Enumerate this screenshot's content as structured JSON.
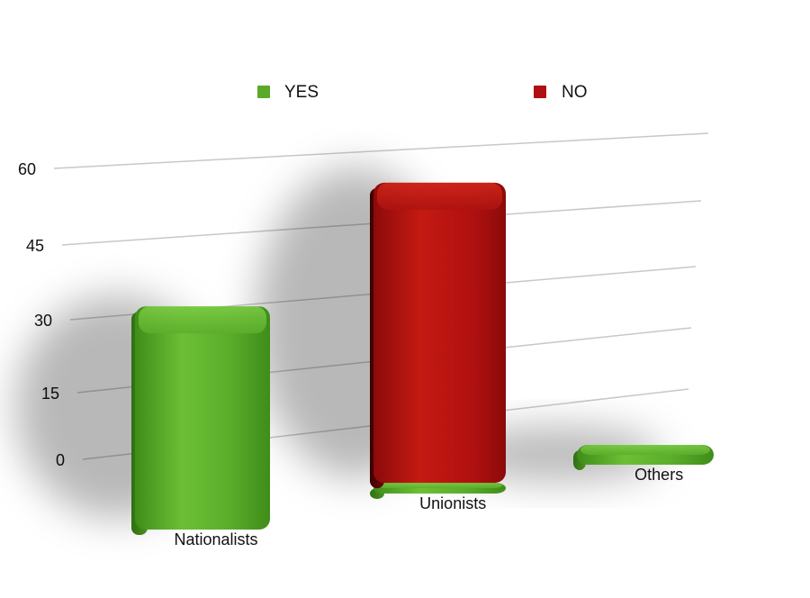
{
  "chart_data": {
    "type": "bar",
    "stacked": true,
    "categories": [
      "Nationalists",
      "Unionists",
      "Others"
    ],
    "series": [
      {
        "name": "YES",
        "color": "#5aaa2a",
        "values": [
          42,
          2,
          4
        ]
      },
      {
        "name": "NO",
        "color": "#b01010",
        "values": [
          0,
          56,
          0
        ]
      }
    ],
    "y_ticks": [
      0,
      15,
      30,
      45,
      60
    ],
    "ylim": [
      0,
      60
    ],
    "grid": true,
    "legend_position": "top"
  }
}
